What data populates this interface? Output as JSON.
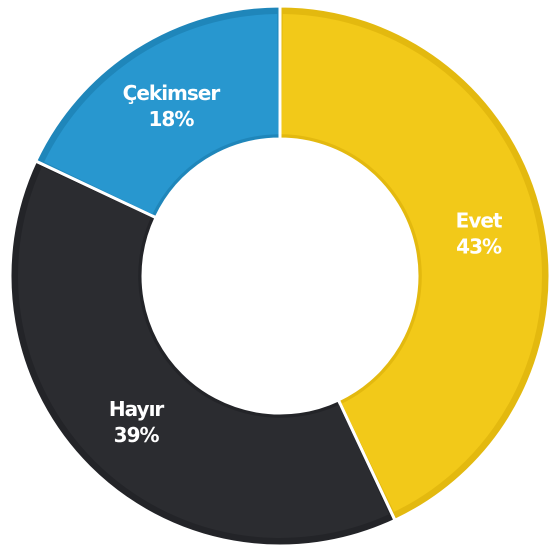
{
  "chart_data": {
    "type": "pie",
    "variant": "donut",
    "slices": [
      {
        "label": "Evet",
        "value": 43,
        "display": "43%",
        "color": "#F2C919",
        "edge": "#E3B90F"
      },
      {
        "label": "Hayır",
        "value": 39,
        "display": "39%",
        "color": "#2B2C30",
        "edge": "#232428"
      },
      {
        "label": "Çekimser",
        "value": 18,
        "display": "18%",
        "color": "#2897CF",
        "edge": "#1F86BA"
      }
    ],
    "start_angle_deg": 0,
    "direction": "clockwise",
    "legend": "none",
    "title": ""
  }
}
